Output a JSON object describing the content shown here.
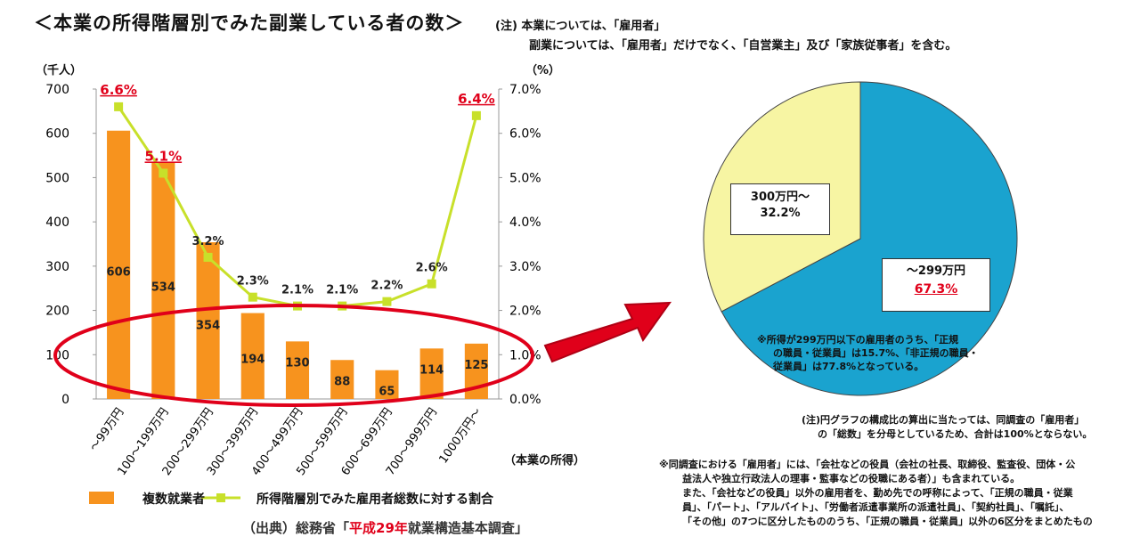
{
  "header": {
    "title": "＜本業の所得階層別でみた副業している者の数＞",
    "note_line1": "(注) 本業については、「雇用者」",
    "note_line2": "副業については、「雇用者」だけでなく、「自営業主」及び「家族従事者」を含む。"
  },
  "chart_data": [
    {
      "type": "bar+line",
      "left_unit": "（千人）",
      "right_unit": "（%）",
      "xlabel": "（本業の所得）",
      "categories": [
        "～99万円",
        "100～199万円",
        "200～299万円",
        "300～399万円",
        "400～499万円",
        "500～599万円",
        "600～699万円",
        "700～999万円",
        "1000万円～"
      ],
      "series": [
        {
          "name": "複数就業者",
          "type": "bar",
          "axis": "left",
          "values": [
            606,
            534,
            354,
            194,
            130,
            88,
            65,
            114,
            125
          ],
          "labels": [
            "606",
            "534",
            "354",
            "194",
            "130",
            "88",
            "65",
            "114",
            "125"
          ]
        },
        {
          "name": "所得階層別でみた雇用者総数に対する割合",
          "type": "line",
          "axis": "right",
          "values": [
            6.6,
            5.1,
            3.2,
            2.3,
            2.1,
            2.1,
            2.2,
            2.6,
            6.4
          ],
          "labels": [
            "6.6%",
            "5.1%",
            "3.2%",
            "2.3%",
            "2.1%",
            "2.1%",
            "2.2%",
            "2.6%",
            "6.4%"
          ],
          "highlighted": [
            true,
            true,
            false,
            false,
            false,
            false,
            false,
            false,
            true
          ]
        }
      ],
      "ylim": [
        0,
        700
      ],
      "y2lim": [
        0,
        7.0
      ],
      "yticks": [
        "0",
        "100",
        "200",
        "300",
        "400",
        "500",
        "600",
        "700"
      ],
      "y2ticks": [
        "0.0%",
        "1.0%",
        "2.0%",
        "3.0%",
        "4.0%",
        "5.0%",
        "6.0%",
        "7.0%"
      ]
    },
    {
      "type": "pie",
      "slices": [
        {
          "name": "～299万円",
          "value": 67.3,
          "label": "67.3%"
        },
        {
          "name": "300万円～",
          "value": 32.2,
          "label": "32.2%"
        }
      ]
    }
  ],
  "pie": {
    "yellow_name": "300万円～",
    "yellow_pct": "32.2%",
    "blue_name": "～299万円",
    "blue_pct": "67.3%",
    "note": [
      "※所得が299万円以下の雇用者のうち、「正規",
      "の職員・従業員」は15.7%、「非正規の職員・",
      "従業員」は77.8%となっている。"
    ]
  },
  "legend": {
    "bar": "複数就業者",
    "line": "所得階層別でみた雇用者総数に対する割合"
  },
  "source": {
    "prefix": "（出典）総務省「",
    "highlight": "平成29年",
    "suffix": "就業構造基本調査」"
  },
  "footnotes": {
    "pie_note": [
      "(注)円グラフの構成比の算出に当たっては、同調査の「雇用者」",
      "の「総数」を分母としているため、合計は100%とならない。"
    ],
    "employee_note": [
      "※同調査における「雇用者」には、「会社などの役員（会社の社長、取締役、監査役、団体・公",
      "益法人や独立行政法人の理事・監事などの役職にある者）」も含まれている。",
      "また、「会社などの役員」以外の雇用者を、勤め先での呼称によって、「正規の職員・従業",
      "員」、「パート」、「アルバイト」、「労働者派遣事業所の派遣社員」、「契約社員」、「嘱託」、",
      "「その他」の7つに区分したもののうち、「正規の職員・従業員」以外の6区分をまとめたもの"
    ]
  },
  "colors": {
    "bar": "#f7931e",
    "line": "#c8e02a",
    "pie_blue": "#1aa3cf",
    "pie_yellow": "#f7f5a3",
    "accent_red": "#e0001a"
  }
}
